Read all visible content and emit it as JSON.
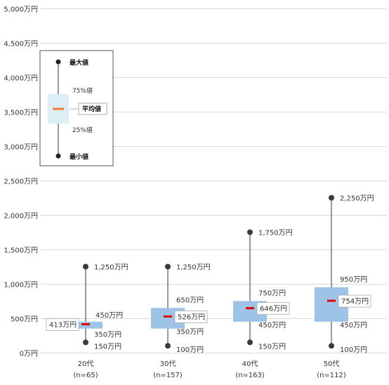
{
  "chart_data": {
    "type": "box",
    "y_unit": "万円",
    "ylim": [
      0,
      5000
    ],
    "y_ticks": [
      0,
      500,
      1000,
      1500,
      2000,
      2500,
      3000,
      3500,
      4000,
      4500,
      5000
    ],
    "y_tick_labels": [
      "0万円",
      "500万円",
      "1,000万円",
      "1,500万円",
      "2,000万円",
      "2,500万円",
      "3,000万円",
      "3,500万円",
      "4,000万円",
      "4,500万円",
      "5,000万円"
    ],
    "grid": true,
    "categories": [
      {
        "label": "20代",
        "n": "(n=65)"
      },
      {
        "label": "30代",
        "n": "(n=157)"
      },
      {
        "label": "40代",
        "n": "(n=163)"
      },
      {
        "label": "50代",
        "n": "(n=112)"
      }
    ],
    "boxes": [
      {
        "min": 150,
        "q1": 350,
        "mean": 413,
        "q3": 450,
        "max": 1250,
        "min_label": "150万円",
        "q1_label": "350万円",
        "mean_label": "413万円",
        "q3_label": "450万円",
        "max_label": "1,250万円"
      },
      {
        "min": 100,
        "q1": 350,
        "mean": 526,
        "q3": 650,
        "max": 1250,
        "min_label": "100万円",
        "q1_label": "350万円",
        "mean_label": "526万円",
        "q3_label": "650万円",
        "max_label": "1,250万円"
      },
      {
        "min": 150,
        "q1": 450,
        "mean": 646,
        "q3": 750,
        "max": 1750,
        "min_label": "150万円",
        "q1_label": "450万円",
        "mean_label": "646万円",
        "q3_label": "750万円",
        "max_label": "1,750万円"
      },
      {
        "min": 100,
        "q1": 450,
        "mean": 754,
        "q3": 950,
        "max": 2250,
        "min_label": "100万円",
        "q1_label": "450万円",
        "mean_label": "754万円",
        "q3_label": "950万円",
        "max_label": "2,250万円"
      }
    ],
    "legend": {
      "placement": "top-left",
      "max": "最大値",
      "q3": "75%値",
      "mean": "平均値",
      "q1": "25%値",
      "min": "最小値"
    },
    "colors": {
      "box": "#9dc3e6",
      "mean": "#e00000",
      "whisker": "#333333",
      "grid": "#d9d9d9",
      "legend_box": "#ddeef5",
      "legend_mean": "#ed7d31"
    }
  }
}
